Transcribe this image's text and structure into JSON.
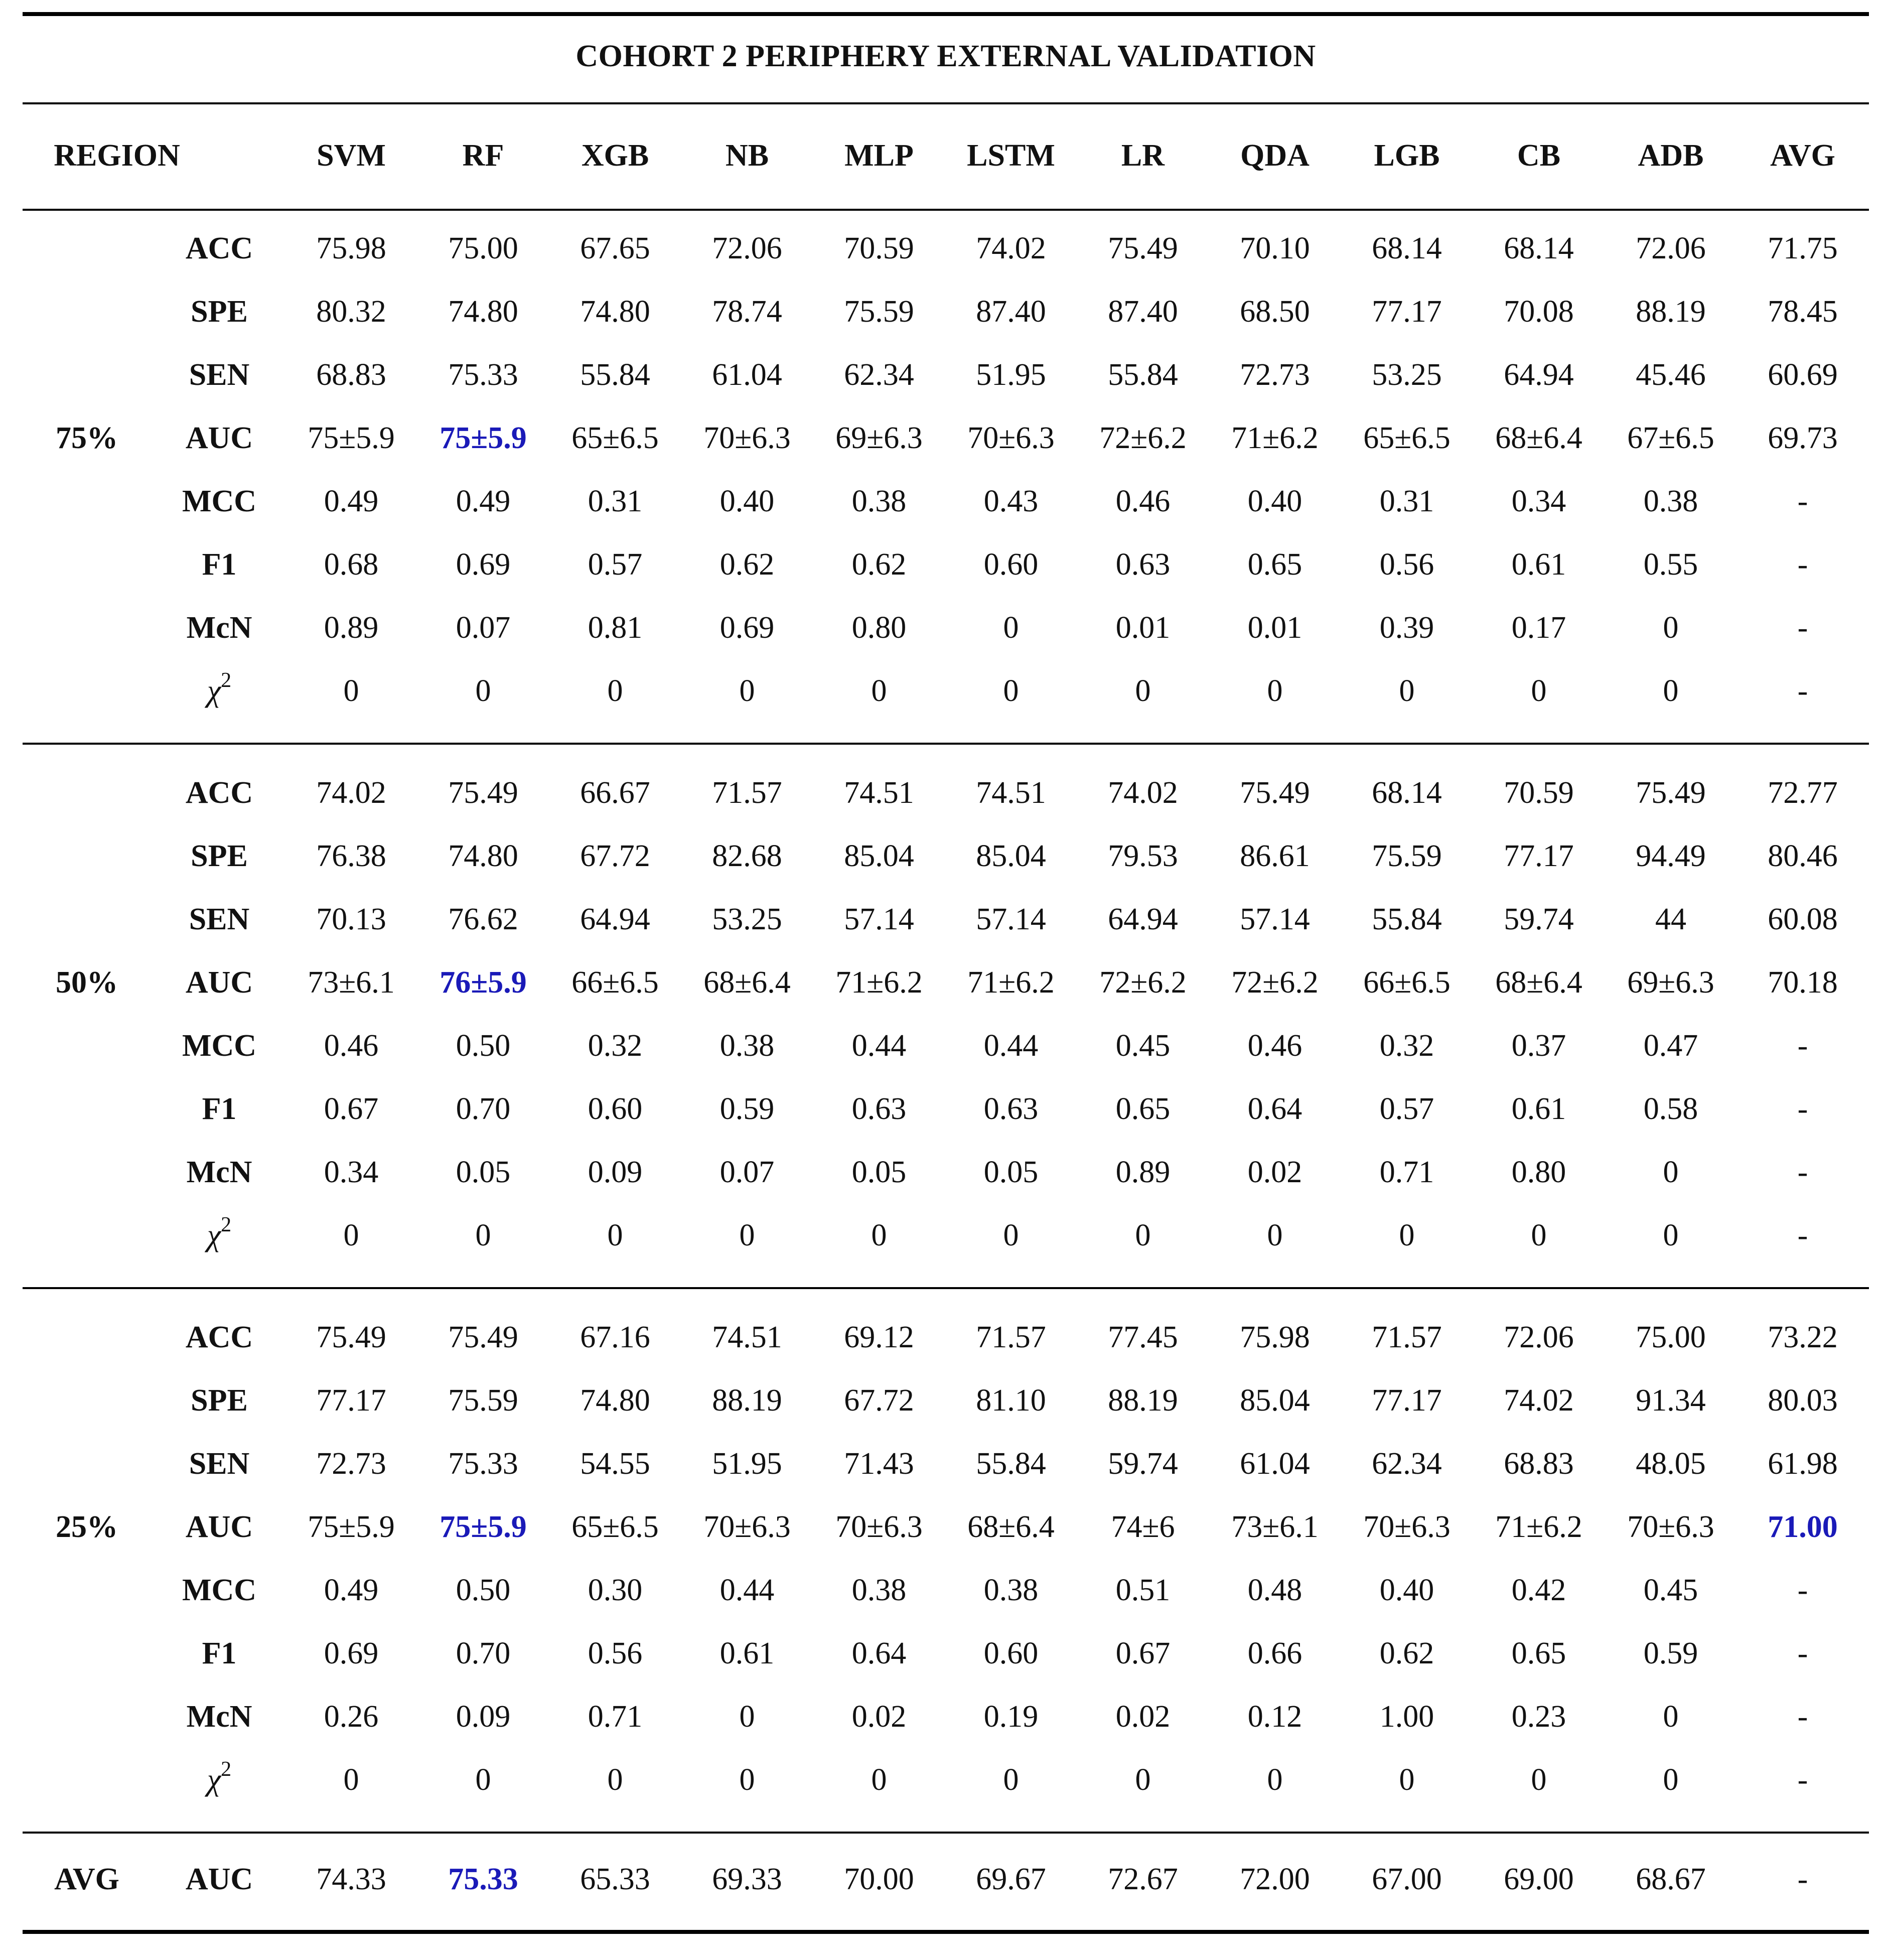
{
  "table": {
    "title": "COHORT 2 PERIPHERY EXTERNAL VALIDATION",
    "region_header": "REGION",
    "models": [
      "SVM",
      "RF",
      "XGB",
      "NB",
      "MLP",
      "LSTM",
      "LR",
      "QDA",
      "LGB",
      "CB",
      "ADB",
      "AVG"
    ],
    "highlight_color": "#1a1ab8",
    "groups": [
      {
        "region": "75%",
        "rows": [
          {
            "metric": "ACC",
            "values": [
              "75.98",
              "75.00",
              "67.65",
              "72.06",
              "70.59",
              "74.02",
              "75.49",
              "70.10",
              "68.14",
              "68.14",
              "72.06",
              "71.75"
            ]
          },
          {
            "metric": "SPE",
            "values": [
              "80.32",
              "74.80",
              "74.80",
              "78.74",
              "75.59",
              "87.40",
              "87.40",
              "68.50",
              "77.17",
              "70.08",
              "88.19",
              "78.45"
            ]
          },
          {
            "metric": "SEN",
            "values": [
              "68.83",
              "75.33",
              "55.84",
              "61.04",
              "62.34",
              "51.95",
              "55.84",
              "72.73",
              "53.25",
              "64.94",
              "45.46",
              "60.69"
            ]
          },
          {
            "metric": "AUC",
            "values": [
              "75±5.9",
              "75±5.9",
              "65±6.5",
              "70±6.3",
              "69±6.3",
              "70±6.3",
              "72±6.2",
              "71±6.2",
              "65±6.5",
              "68±6.4",
              "67±6.5",
              "69.73"
            ],
            "highlight": [
              1
            ]
          },
          {
            "metric": "MCC",
            "values": [
              "0.49",
              "0.49",
              "0.31",
              "0.40",
              "0.38",
              "0.43",
              "0.46",
              "0.40",
              "0.31",
              "0.34",
              "0.38",
              "-"
            ]
          },
          {
            "metric": "F1",
            "values": [
              "0.68",
              "0.69",
              "0.57",
              "0.62",
              "0.62",
              "0.60",
              "0.63",
              "0.65",
              "0.56",
              "0.61",
              "0.55",
              "-"
            ]
          },
          {
            "metric": "McN",
            "values": [
              "0.89",
              "0.07",
              "0.81",
              "0.69",
              "0.80",
              "0",
              "0.01",
              "0.01",
              "0.39",
              "0.17",
              "0",
              "-"
            ]
          },
          {
            "metric": "χ",
            "metric_sup": "2",
            "values": [
              "0",
              "0",
              "0",
              "0",
              "0",
              "0",
              "0",
              "0",
              "0",
              "0",
              "0",
              "-"
            ]
          }
        ]
      },
      {
        "region": "50%",
        "rows": [
          {
            "metric": "ACC",
            "values": [
              "74.02",
              "75.49",
              "66.67",
              "71.57",
              "74.51",
              "74.51",
              "74.02",
              "75.49",
              "68.14",
              "70.59",
              "75.49",
              "72.77"
            ]
          },
          {
            "metric": "SPE",
            "values": [
              "76.38",
              "74.80",
              "67.72",
              "82.68",
              "85.04",
              "85.04",
              "79.53",
              "86.61",
              "75.59",
              "77.17",
              "94.49",
              "80.46"
            ]
          },
          {
            "metric": "SEN",
            "values": [
              "70.13",
              "76.62",
              "64.94",
              "53.25",
              "57.14",
              "57.14",
              "64.94",
              "57.14",
              "55.84",
              "59.74",
              "44",
              "60.08"
            ]
          },
          {
            "metric": "AUC",
            "values": [
              "73±6.1",
              "76±5.9",
              "66±6.5",
              "68±6.4",
              "71±6.2",
              "71±6.2",
              "72±6.2",
              "72±6.2",
              "66±6.5",
              "68±6.4",
              "69±6.3",
              "70.18"
            ],
            "highlight": [
              1
            ]
          },
          {
            "metric": "MCC",
            "values": [
              "0.46",
              "0.50",
              "0.32",
              "0.38",
              "0.44",
              "0.44",
              "0.45",
              "0.46",
              "0.32",
              "0.37",
              "0.47",
              "-"
            ]
          },
          {
            "metric": "F1",
            "values": [
              "0.67",
              "0.70",
              "0.60",
              "0.59",
              "0.63",
              "0.63",
              "0.65",
              "0.64",
              "0.57",
              "0.61",
              "0.58",
              "-"
            ]
          },
          {
            "metric": "McN",
            "values": [
              "0.34",
              "0.05",
              "0.09",
              "0.07",
              "0.05",
              "0.05",
              "0.89",
              "0.02",
              "0.71",
              "0.80",
              "0",
              "-"
            ]
          },
          {
            "metric": "χ",
            "metric_sup": "2",
            "values": [
              "0",
              "0",
              "0",
              "0",
              "0",
              "0",
              "0",
              "0",
              "0",
              "0",
              "0",
              "-"
            ]
          }
        ]
      },
      {
        "region": "25%",
        "rows": [
          {
            "metric": "ACC",
            "values": [
              "75.49",
              "75.49",
              "67.16",
              "74.51",
              "69.12",
              "71.57",
              "77.45",
              "75.98",
              "71.57",
              "72.06",
              "75.00",
              "73.22"
            ]
          },
          {
            "metric": "SPE",
            "values": [
              "77.17",
              "75.59",
              "74.80",
              "88.19",
              "67.72",
              "81.10",
              "88.19",
              "85.04",
              "77.17",
              "74.02",
              "91.34",
              "80.03"
            ]
          },
          {
            "metric": "SEN",
            "values": [
              "72.73",
              "75.33",
              "54.55",
              "51.95",
              "71.43",
              "55.84",
              "59.74",
              "61.04",
              "62.34",
              "68.83",
              "48.05",
              "61.98"
            ]
          },
          {
            "metric": "AUC",
            "values": [
              "75±5.9",
              "75±5.9",
              "65±6.5",
              "70±6.3",
              "70±6.3",
              "68±6.4",
              "74±6",
              "73±6.1",
              "70±6.3",
              "71±6.2",
              "70±6.3",
              "71.00"
            ],
            "highlight": [
              1,
              11
            ]
          },
          {
            "metric": "MCC",
            "values": [
              "0.49",
              "0.50",
              "0.30",
              "0.44",
              "0.38",
              "0.38",
              "0.51",
              "0.48",
              "0.40",
              "0.42",
              "0.45",
              "-"
            ]
          },
          {
            "metric": "F1",
            "values": [
              "0.69",
              "0.70",
              "0.56",
              "0.61",
              "0.64",
              "0.60",
              "0.67",
              "0.66",
              "0.62",
              "0.65",
              "0.59",
              "-"
            ]
          },
          {
            "metric": "McN",
            "values": [
              "0.26",
              "0.09",
              "0.71",
              "0",
              "0.02",
              "0.19",
              "0.02",
              "0.12",
              "1.00",
              "0.23",
              "0",
              "-"
            ]
          },
          {
            "metric": "χ",
            "metric_sup": "2",
            "values": [
              "0",
              "0",
              "0",
              "0",
              "0",
              "0",
              "0",
              "0",
              "0",
              "0",
              "0",
              "-"
            ]
          }
        ]
      },
      {
        "region": "AVG",
        "rows": [
          {
            "metric": "AUC",
            "values": [
              "74.33",
              "75.33",
              "65.33",
              "69.33",
              "70.00",
              "69.67",
              "72.67",
              "72.00",
              "67.00",
              "69.00",
              "68.67",
              "-"
            ],
            "highlight": [
              1
            ]
          }
        ]
      }
    ]
  }
}
